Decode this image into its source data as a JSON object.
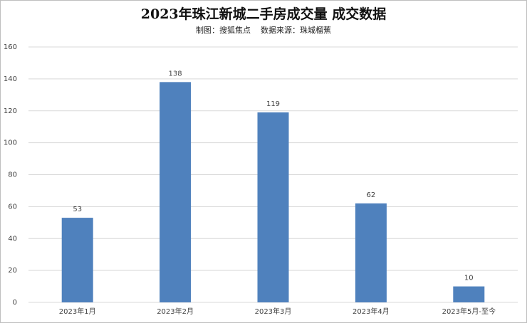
{
  "chart_data": {
    "type": "bar",
    "title": "2023年珠江新城二手房成交量 成交数据",
    "subtitle": "制图：搜狐焦点    数据来源：珠城榴蕉",
    "categories": [
      "2023年1月",
      "2023年2月",
      "2023年3月",
      "2023年4月",
      "2023年5月-至今"
    ],
    "values": [
      53,
      138,
      119,
      62,
      10
    ],
    "color": "#4f81bd",
    "ylim": [
      0,
      160
    ],
    "yticks": [
      0,
      20,
      40,
      60,
      80,
      100,
      120,
      140,
      160
    ],
    "grid": true
  }
}
